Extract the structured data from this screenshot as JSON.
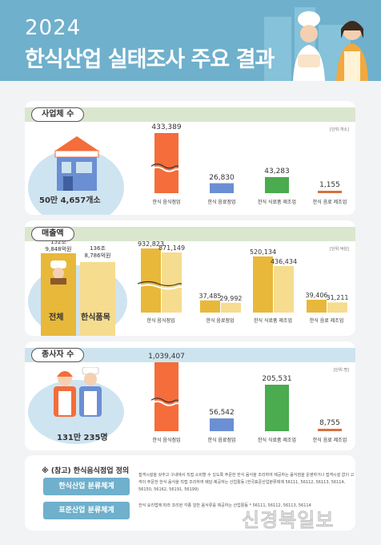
{
  "header": {
    "year": "2024",
    "title": "한식산업 실태조사 주요 결과"
  },
  "colors": {
    "orange": "#f46d3a",
    "blue": "#6b8fd3",
    "green": "#4aab4f",
    "orange_dark": "#d8703e",
    "gold": "#e8b83a",
    "gold_light": "#f6dc8f",
    "header": "#6fb0cc",
    "sage": "#dbe6cf",
    "light_blue": "#cde4ef"
  },
  "sections": {
    "business": {
      "label": "사업체 수",
      "unit": "[단위:개소]",
      "total": "50만 4,657개소"
    },
    "sales": {
      "label": "매출액",
      "unit": "[단위:억원]",
      "total_label": "전체",
      "korean_label": "한식품목"
    },
    "workers": {
      "label": "종사자 수",
      "unit": "[단위:명]",
      "total": "131만 235명"
    }
  },
  "chart_data": [
    {
      "type": "bar",
      "title": "사업체 수",
      "categories": [
        "한식 음식점업",
        "한식 음료점업",
        "한식 식료품 제조업",
        "한식 음료 제조업"
      ],
      "values": [
        433389,
        26830,
        43283,
        1155
      ],
      "value_labels": [
        "433,389",
        "26,830",
        "43,283",
        "1,155"
      ],
      "axis_break": true
    },
    {
      "type": "bar",
      "title": "매출액",
      "summary": [
        {
          "name": "전체",
          "value_label": "152조\n9,848억원"
        },
        {
          "name": "한식품목",
          "value_label": "136조\n8,786억원"
        }
      ],
      "categories": [
        "한식 음식점업",
        "한식 음료점업",
        "한식 식료품 제조업",
        "한식 음료 제조업"
      ],
      "series": [
        {
          "values": [
            932823,
            37485,
            520134,
            39406
          ],
          "value_labels": [
            "932,823",
            "37,485",
            "520,134",
            "39,406"
          ]
        },
        {
          "values": [
            871149,
            29992,
            436434,
            31211
          ],
          "value_labels": [
            "871,149",
            "29,992",
            "436,434",
            "31,211"
          ]
        }
      ],
      "axis_break": true
    },
    {
      "type": "bar",
      "title": "종사자 수",
      "categories": [
        "한식 음식점업",
        "한식 음료점업",
        "한식 식료품 제조업",
        "한식 음료 제조업"
      ],
      "values": [
        1039407,
        56542,
        205531,
        8755
      ],
      "value_labels": [
        "1,039,407",
        "56,542",
        "205,531",
        "8,755"
      ],
      "axis_break": true
    }
  ],
  "notes": {
    "title": "※ (참고) 한식음식점업 정의",
    "items": [
      {
        "label": "한식산업 분류체계",
        "text": "접객시설을 갖추고 구내에서 직접 소비할 수 있도록 주문한 한식 음식을 조리하여 제공하는 음식점을 운영하거나 접객시설 없이 고객이 주문한 한식 음식을 직접 조리하여 배달·제공하는 산업활동 (한국표준산업분류체계 56111, 56112, 56113, 56114, 56150, 56162, 56191, 56199)"
      },
      {
        "label": "표준산업 분류체계",
        "text": "한식 요리법에 따라 조리된 각종 일반 음식류를 제공하는 산업활동 * 56111, 56112, 56113, 56114"
      }
    ]
  },
  "watermark": "신경북일보"
}
